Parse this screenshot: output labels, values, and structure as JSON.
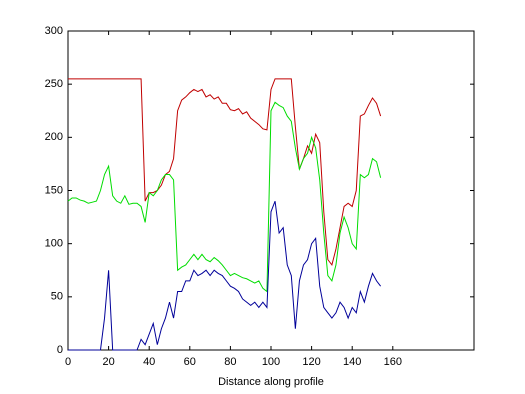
{
  "chart_data": {
    "type": "line",
    "x_label": "Distance along profile",
    "x": [
      0,
      2,
      4,
      6,
      8,
      10,
      12,
      14,
      16,
      18,
      20,
      22,
      24,
      26,
      28,
      30,
      32,
      34,
      36,
      38,
      40,
      42,
      44,
      46,
      48,
      50,
      52,
      54,
      56,
      58,
      60,
      62,
      64,
      66,
      68,
      70,
      72,
      74,
      76,
      78,
      80,
      82,
      84,
      86,
      88,
      90,
      92,
      94,
      96,
      98,
      100,
      102,
      104,
      106,
      108,
      110,
      112,
      114,
      116,
      118,
      120,
      122,
      124,
      126,
      128,
      130,
      132,
      134,
      136,
      138,
      140,
      142,
      144,
      146,
      148,
      150,
      152,
      154
    ],
    "series": [
      {
        "name": "Red",
        "color": "#c00000",
        "values": [
          255,
          255,
          255,
          255,
          255,
          255,
          255,
          255,
          255,
          255,
          255,
          255,
          255,
          255,
          255,
          255,
          255,
          255,
          255,
          140,
          148,
          148,
          150,
          155,
          165,
          168,
          180,
          225,
          235,
          238,
          242,
          245,
          243,
          245,
          238,
          240,
          236,
          238,
          232,
          232,
          226,
          225,
          227,
          222,
          224,
          218,
          215,
          212,
          208,
          207,
          245,
          255,
          255,
          255,
          255,
          255,
          210,
          170,
          180,
          192,
          185,
          203,
          195,
          130,
          85,
          80,
          95,
          115,
          135,
          138,
          135,
          150,
          220,
          222,
          230,
          237,
          232,
          220
        ]
      },
      {
        "name": "Green",
        "color": "#00dd00",
        "values": [
          140,
          143,
          143,
          141,
          140,
          138,
          139,
          140,
          150,
          165,
          173,
          145,
          140,
          138,
          145,
          137,
          138,
          138,
          135,
          120,
          148,
          145,
          150,
          160,
          165,
          165,
          160,
          75,
          78,
          80,
          85,
          90,
          85,
          90,
          85,
          83,
          87,
          84,
          80,
          75,
          70,
          72,
          70,
          68,
          67,
          65,
          63,
          65,
          58,
          55,
          225,
          233,
          230,
          228,
          220,
          215,
          190,
          170,
          180,
          185,
          200,
          190,
          160,
          110,
          70,
          65,
          80,
          110,
          125,
          115,
          100,
          95,
          165,
          162,
          165,
          180,
          177,
          162
        ]
      },
      {
        "name": "Blue",
        "color": "#000099",
        "values": [
          0,
          0,
          0,
          0,
          0,
          0,
          0,
          0,
          0,
          30,
          75,
          0,
          0,
          0,
          0,
          0,
          0,
          0,
          10,
          5,
          15,
          25,
          5,
          20,
          30,
          45,
          30,
          55,
          55,
          65,
          65,
          75,
          70,
          72,
          75,
          70,
          75,
          72,
          70,
          65,
          60,
          58,
          55,
          48,
          45,
          42,
          45,
          40,
          45,
          40,
          130,
          140,
          110,
          115,
          80,
          70,
          20,
          65,
          80,
          85,
          100,
          105,
          60,
          40,
          35,
          30,
          35,
          45,
          40,
          30,
          40,
          35,
          55,
          45,
          60,
          72,
          65,
          60
        ]
      }
    ],
    "xlim": [
      0,
      200
    ],
    "xticks": [
      0,
      20,
      40,
      60,
      80,
      100,
      120,
      140,
      160
    ],
    "ylim": [
      0,
      300
    ],
    "yticks": [
      0,
      50,
      100,
      150,
      200,
      250,
      300
    ]
  }
}
